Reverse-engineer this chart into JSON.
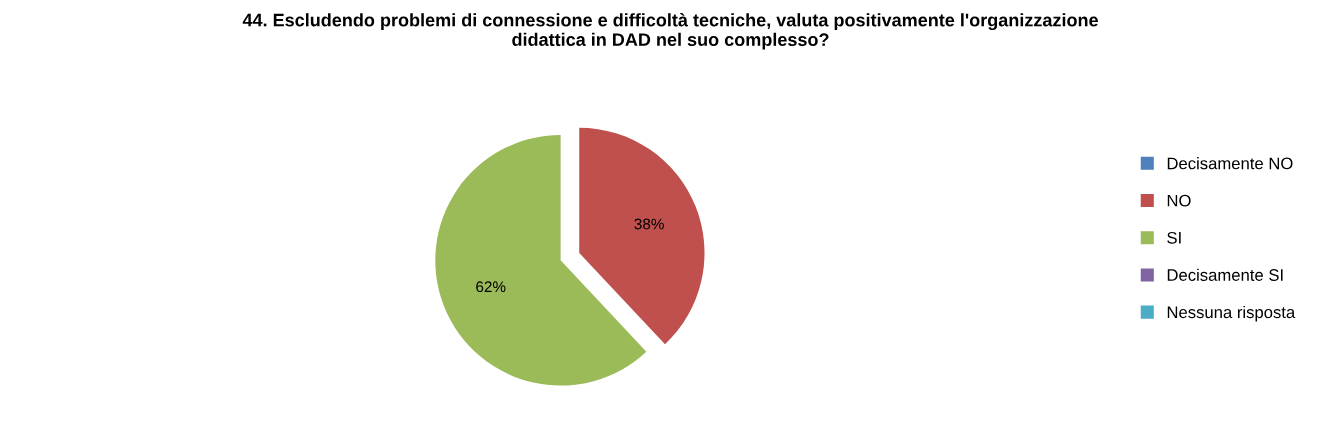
{
  "chart_data": {
    "type": "pie",
    "title": "44. Escludendo problemi di connessione e difficoltà tecniche, valuta positivamente l'organizzazione\ndidattica in DAD nel suo complesso?",
    "categories": [
      "Decisamente NO",
      "NO",
      "SI",
      "Decisamente SI",
      "Nessuna risposta"
    ],
    "values": [
      0,
      38,
      62,
      0,
      0
    ],
    "colors": [
      "#4f81bd",
      "#c0504d",
      "#9bbb59",
      "#8064a2",
      "#4bacc6"
    ],
    "value_labels": [
      null,
      "38%",
      "62%",
      null,
      null
    ],
    "legend": "right"
  }
}
